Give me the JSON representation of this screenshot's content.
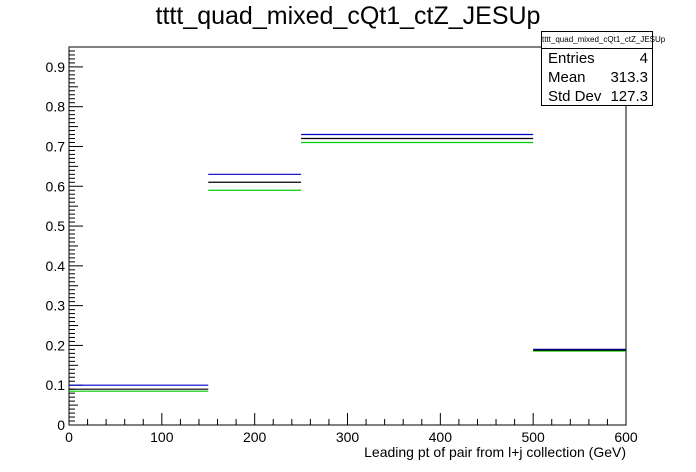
{
  "chart_data": {
    "type": "step",
    "title": "tttt_quad_mixed_cQt1_ctZ_JESUp",
    "xlabel": "Leading pt of pair from l+j collection (GeV)",
    "ylabel": "",
    "xlim": [
      0,
      600
    ],
    "ylim": [
      0,
      0.95
    ],
    "x_ticks": [
      0,
      100,
      200,
      300,
      400,
      500,
      600
    ],
    "y_ticks": [
      0,
      0.1,
      0.2,
      0.3,
      0.4,
      0.5,
      0.6,
      0.7,
      0.8,
      0.9
    ],
    "bins": [
      [
        0,
        150
      ],
      [
        150,
        250
      ],
      [
        250,
        500
      ],
      [
        500,
        600
      ]
    ],
    "series": [
      {
        "color": "#000000",
        "values": [
          0.09,
          0.61,
          0.72,
          0.188
        ]
      },
      {
        "color": "#0000cc",
        "values": [
          0.1,
          0.63,
          0.73,
          0.19
        ]
      },
      {
        "color": "#00cc00",
        "values": [
          0.085,
          0.59,
          0.71,
          0.186
        ]
      }
    ],
    "grid": false,
    "legend": "top-right",
    "stats": {
      "name": "tttt_quad_mixed_cQt1_ctZ_JESUp",
      "rows": [
        {
          "label": "Entries",
          "value": "4"
        },
        {
          "label": "Mean",
          "value": "313.3"
        },
        {
          "label": "Std Dev",
          "value": "127.3"
        }
      ]
    }
  }
}
